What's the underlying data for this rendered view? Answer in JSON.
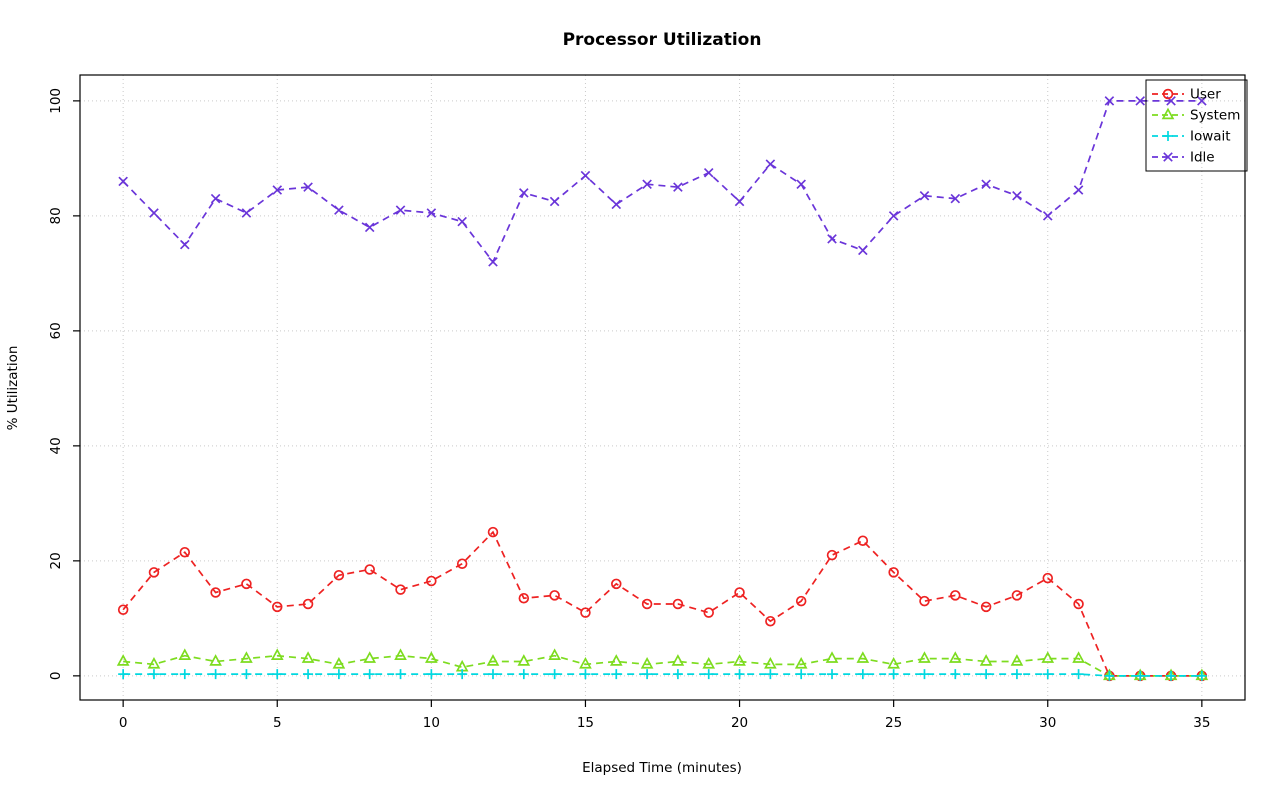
{
  "chart_data": {
    "type": "line",
    "title": "Processor Utilization",
    "xlabel": "Elapsed Time (minutes)",
    "ylabel": "% Utilization",
    "x": [
      0,
      1,
      2,
      3,
      4,
      5,
      6,
      7,
      8,
      9,
      10,
      11,
      12,
      13,
      14,
      15,
      16,
      17,
      18,
      19,
      20,
      21,
      22,
      23,
      24,
      25,
      26,
      27,
      28,
      29,
      30,
      31,
      32,
      33,
      34,
      35
    ],
    "xticks": [
      0,
      5,
      10,
      15,
      20,
      25,
      30,
      35
    ],
    "yticks": [
      0,
      20,
      40,
      60,
      80,
      100
    ],
    "xlim": [
      -1.4,
      36.4
    ],
    "ylim": [
      -4.2,
      104.5
    ],
    "grid": true,
    "line_style": "dashed",
    "legend_position": "topright",
    "series": [
      {
        "name": "User",
        "color": "#ee2222",
        "marker": "circle",
        "values": [
          11.5,
          18,
          21.5,
          14.5,
          16,
          12,
          12.5,
          17.5,
          18.5,
          15,
          16.5,
          19.5,
          25,
          13.5,
          14,
          11,
          16,
          12.5,
          12.5,
          11,
          14.5,
          9.5,
          13,
          21,
          23.5,
          18,
          13,
          14,
          12,
          14,
          17,
          12.5,
          0,
          0,
          0,
          0
        ]
      },
      {
        "name": "System",
        "color": "#7ddc1f",
        "marker": "triangle",
        "values": [
          2.5,
          2,
          3.5,
          2.5,
          3,
          3.5,
          3,
          2,
          3,
          3.5,
          3,
          1.5,
          2.5,
          2.5,
          3.5,
          2,
          2.5,
          2,
          2.5,
          2,
          2.5,
          2,
          2,
          3,
          3,
          2,
          3,
          3,
          2.5,
          2.5,
          3,
          3,
          0,
          0,
          0,
          0
        ]
      },
      {
        "name": "Iowait",
        "color": "#00d8e0",
        "marker": "plus",
        "values": [
          0.3,
          0.3,
          0.3,
          0.3,
          0.3,
          0.3,
          0.3,
          0.3,
          0.3,
          0.3,
          0.3,
          0.3,
          0.3,
          0.3,
          0.3,
          0.3,
          0.3,
          0.3,
          0.3,
          0.3,
          0.3,
          0.3,
          0.3,
          0.3,
          0.3,
          0.3,
          0.3,
          0.3,
          0.3,
          0.3,
          0.3,
          0.3,
          0,
          0,
          0,
          0
        ]
      },
      {
        "name": "Idle",
        "color": "#6a35d9",
        "marker": "x",
        "values": [
          86,
          80.5,
          75,
          83,
          80.5,
          84.5,
          85,
          81,
          78,
          81,
          80.5,
          79,
          72,
          84,
          82.5,
          87,
          82,
          85.5,
          85,
          87.5,
          82.5,
          89,
          85.5,
          76,
          74,
          80,
          83.5,
          83,
          85.5,
          83.5,
          80,
          84.5,
          100,
          100,
          100,
          100
        ]
      }
    ]
  }
}
